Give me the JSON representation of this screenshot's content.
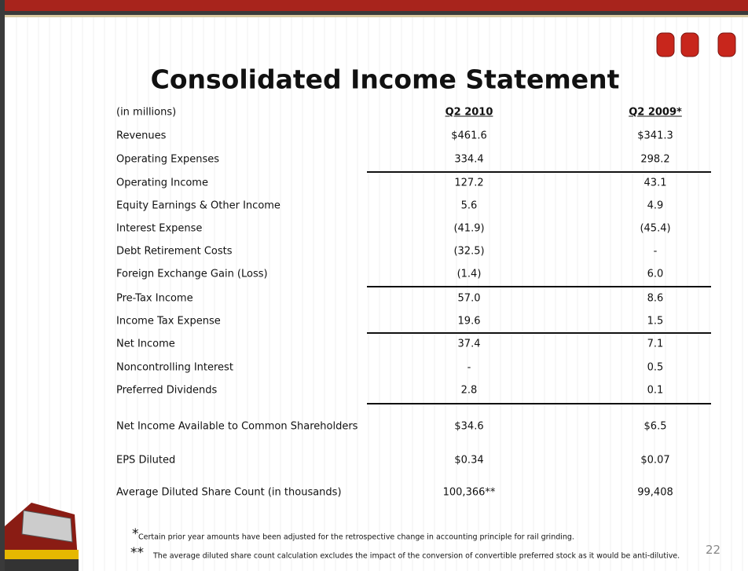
{
  "title": "Consolidated Income Statement",
  "table": {
    "header": [
      "(in millions)",
      "Q2 2010",
      "Q2 2009*"
    ],
    "rows": [
      [
        "Revenues",
        "$461.6",
        "$341.3"
      ],
      [
        "Operating Expenses",
        "334.4",
        "298.2"
      ],
      [
        "Operating Income",
        "127.2",
        "43.1"
      ],
      [
        "Equity Earnings & Other Income",
        "5.6",
        "4.9"
      ],
      [
        "Interest Expense",
        "(41.9)",
        "(45.4)"
      ],
      [
        "Debt Retirement Costs",
        "(32.5)",
        "-"
      ],
      [
        "Foreign Exchange Gain (Loss)",
        "(1.4)",
        "6.0"
      ],
      [
        "Pre-Tax Income",
        "57.0",
        "8.6"
      ],
      [
        "Income Tax Expense",
        "19.6",
        "1.5"
      ],
      [
        "Net Income",
        "37.4",
        "7.1"
      ],
      [
        "Noncontrolling Interest",
        "-",
        "0.5"
      ],
      [
        "Preferred Dividends",
        "2.8",
        "0.1"
      ],
      [
        "Net Income Available to Common Shareholders",
        "$34.6",
        "$6.5"
      ],
      [
        "EPS Diluted",
        "$0.34",
        "$0.07"
      ],
      [
        "Average Diluted Share Count (in thousands)",
        "100,366**",
        "99,408"
      ]
    ]
  },
  "footnotes": [
    {
      "marker": "*",
      "text": "Certain prior year amounts have been adjusted for the retrospective change in accounting principle for rail grinding."
    },
    {
      "marker": "**",
      "text": "The average diluted share count calculation excludes the impact of the conversion of convertible preferred stock as it would be anti-dilutive."
    }
  ],
  "page_number": "22"
}
